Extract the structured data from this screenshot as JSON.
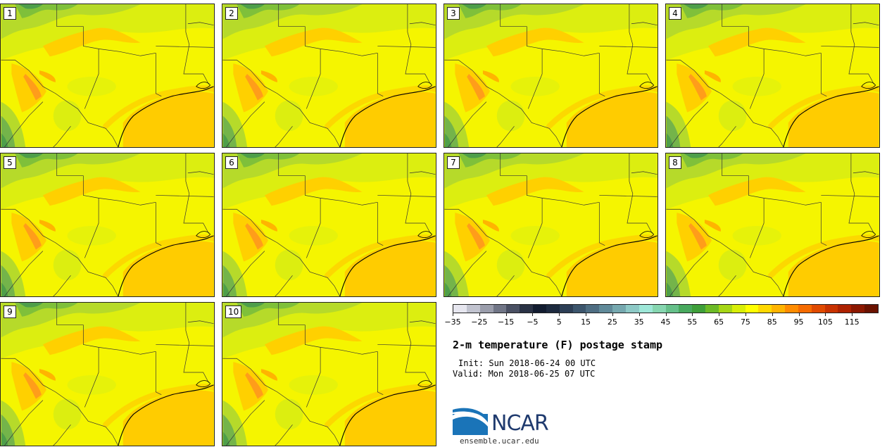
{
  "panels": [
    {
      "label": "1"
    },
    {
      "label": "2"
    },
    {
      "label": "3"
    },
    {
      "label": "4"
    },
    {
      "label": "5"
    },
    {
      "label": "6"
    },
    {
      "label": "7"
    },
    {
      "label": "8"
    },
    {
      "label": "9"
    },
    {
      "label": "10"
    }
  ],
  "colorbar": {
    "colors": [
      "#e6e6ef",
      "#c1c3cf",
      "#9a9dab",
      "#707586",
      "#4a5063",
      "#2a3245",
      "#121c30",
      "#1d2a3f",
      "#2c3e55",
      "#3c556c",
      "#4e6d82",
      "#608a99",
      "#76a8af",
      "#8dc9c6",
      "#9ee7d8",
      "#86d6b0",
      "#66c08a",
      "#48a95e",
      "#3f9f3a",
      "#6cba27",
      "#a6d616",
      "#d8ee08",
      "#ffff00",
      "#ffd800",
      "#ffb400",
      "#ff8c00",
      "#f56b00",
      "#e04a00",
      "#c83200",
      "#ad2200",
      "#8c1800",
      "#6a1200"
    ],
    "tick_labels": [
      "−35",
      "−25",
      "−15",
      "−5",
      "5",
      "15",
      "25",
      "35",
      "45",
      "55",
      "65",
      "75",
      "85",
      "95",
      "105",
      "115"
    ]
  },
  "title": "2-m temperature (F) postage stamp",
  "init": "Init: Sun 2018-06-24 00 UTC",
  "valid": "Valid: Mon 2018-06-25 07 UTC",
  "logo_text": "NCAR",
  "site": "ensemble.ucar.edu"
}
